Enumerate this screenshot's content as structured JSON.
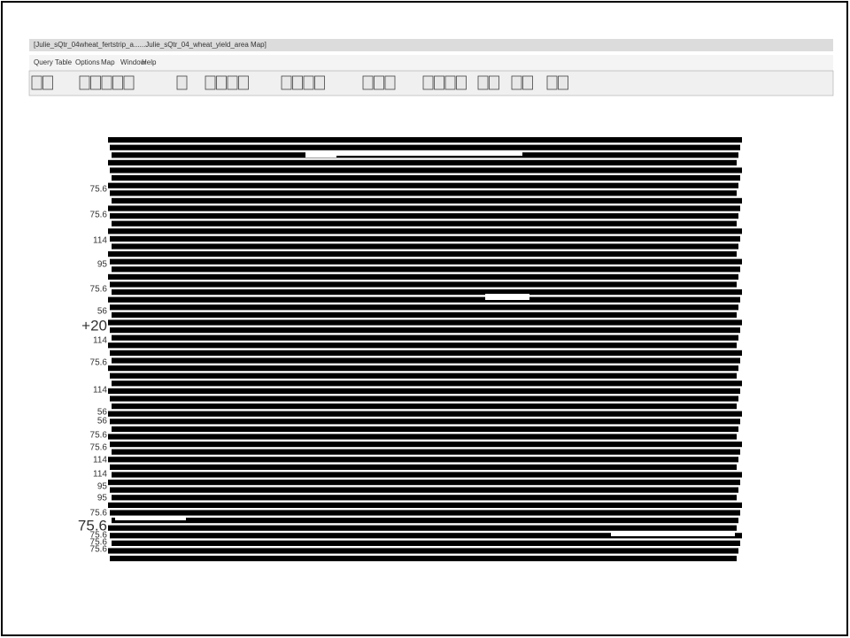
{
  "window": {
    "title": "[Julie_sQtr_04wheat_fertstrip_a......Julie_sQtr_04_wheat_yield_area Map]",
    "menu": [
      "Query",
      "Table",
      "Options",
      "Map",
      "Window",
      "Help"
    ]
  },
  "map": {
    "labels": [
      "75.6",
      "75.6",
      "114",
      "95",
      "75.6",
      "56",
      "+20",
      "114",
      "75.6",
      "114",
      "56",
      "56",
      "75.6",
      "75.6",
      "114",
      "114",
      "95",
      "95",
      "75.6",
      "75.6",
      "75.6",
      "75.6",
      "75.6"
    ]
  }
}
